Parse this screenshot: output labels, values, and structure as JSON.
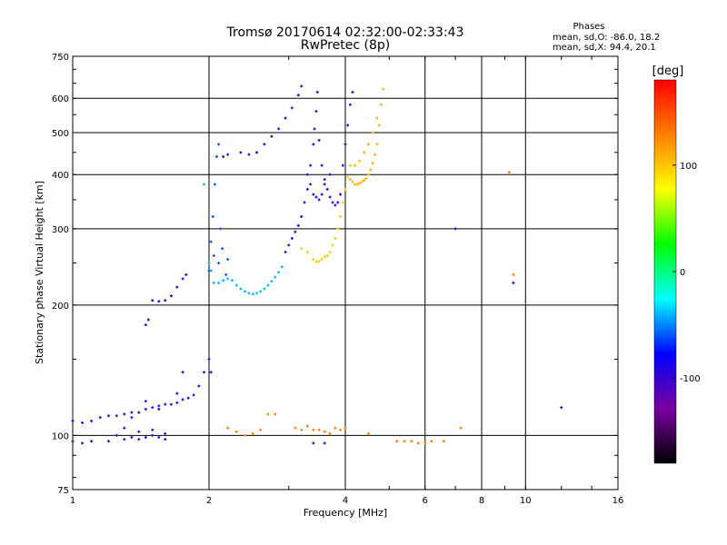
{
  "chart_data": {
    "type": "scatter",
    "title": "Tromsø 20170614 02:32:00-02:33:43",
    "subtitle": "RwPretec (8p)",
    "xlabel": "Frequency [MHz]",
    "ylabel": "Stationary phase Virtual Height [km]",
    "x_scale": "log",
    "y_scale": "log",
    "xlim": [
      1,
      16
    ],
    "ylim": [
      75,
      750
    ],
    "x_ticks": [
      1,
      2,
      4,
      6,
      8,
      10,
      16
    ],
    "y_ticks": [
      75,
      100,
      200,
      300,
      400,
      500,
      600,
      750
    ],
    "grid": true,
    "stats": {
      "heading": "Phases",
      "line_o": "mean, sd,O: -86.0, 18.2",
      "line_x": "mean, sd,X:  94.4, 20.1"
    },
    "colorbar": {
      "label": "[deg]",
      "min": -180,
      "max": 180,
      "ticks": [
        100,
        0,
        -100
      ],
      "stops": [
        "#000000",
        "#7a00a0",
        "#0000ff",
        "#00ffff",
        "#00ff00",
        "#ffff00",
        "#ff8000",
        "#ff0000"
      ]
    },
    "series": [
      {
        "phase": -100,
        "points": [
          [
            1.0,
            108
          ],
          [
            1.05,
            107
          ],
          [
            1.1,
            108
          ],
          [
            1.15,
            110
          ],
          [
            1.2,
            111
          ],
          [
            1.25,
            111
          ],
          [
            1.3,
            112
          ],
          [
            1.35,
            113
          ],
          [
            1.4,
            113
          ],
          [
            1.45,
            115
          ],
          [
            1.5,
            116
          ],
          [
            1.55,
            117
          ],
          [
            1.6,
            118
          ],
          [
            1.65,
            118
          ],
          [
            1.7,
            119
          ],
          [
            1.75,
            121
          ],
          [
            1.8,
            122
          ],
          [
            1.85,
            124
          ],
          [
            1.9,
            130
          ],
          [
            1.95,
            140
          ],
          [
            2.0,
            150
          ],
          [
            2.02,
            140
          ]
        ]
      },
      {
        "phase": -100,
        "points": [
          [
            1.0,
            97
          ],
          [
            1.05,
            96
          ],
          [
            1.1,
            97
          ],
          [
            1.2,
            97
          ],
          [
            1.3,
            98
          ],
          [
            1.35,
            99
          ],
          [
            1.4,
            98
          ],
          [
            1.45,
            99
          ],
          [
            1.5,
            100
          ],
          [
            1.55,
            99
          ],
          [
            1.6,
            98
          ],
          [
            1.25,
            100
          ],
          [
            1.3,
            104
          ],
          [
            1.4,
            102
          ],
          [
            1.5,
            103
          ],
          [
            1.6,
            101
          ],
          [
            1.35,
            110
          ],
          [
            1.45,
            120
          ],
          [
            1.55,
            115
          ],
          [
            1.7,
            125
          ],
          [
            1.75,
            140
          ]
        ]
      },
      {
        "phase": -100,
        "points": [
          [
            1.45,
            180
          ],
          [
            1.47,
            185
          ],
          [
            1.5,
            205
          ],
          [
            1.55,
            204
          ],
          [
            1.6,
            205
          ],
          [
            1.65,
            210
          ],
          [
            1.7,
            220
          ],
          [
            1.75,
            230
          ],
          [
            1.78,
            235
          ]
        ]
      },
      {
        "phase": -40,
        "points": [
          [
            1.95,
            380
          ],
          [
            2.0,
            250
          ],
          [
            2.02,
            240
          ],
          [
            2.05,
            225
          ],
          [
            2.1,
            225
          ],
          [
            2.15,
            228
          ],
          [
            2.2,
            230
          ],
          [
            2.25,
            228
          ],
          [
            2.3,
            222
          ],
          [
            2.35,
            218
          ],
          [
            2.4,
            215
          ],
          [
            2.45,
            213
          ],
          [
            2.5,
            212
          ],
          [
            2.55,
            213
          ],
          [
            2.6,
            215
          ],
          [
            2.65,
            218
          ],
          [
            2.7,
            222
          ],
          [
            2.75,
            227
          ],
          [
            2.8,
            232
          ],
          [
            2.85,
            238
          ],
          [
            2.9,
            245
          ]
        ]
      },
      {
        "phase": -60,
        "points": [
          [
            2.0,
            240
          ],
          [
            2.02,
            280
          ],
          [
            2.04,
            320
          ],
          [
            2.06,
            380
          ],
          [
            2.08,
            440
          ],
          [
            2.1,
            470
          ],
          [
            2.05,
            260
          ],
          [
            2.1,
            250
          ],
          [
            2.12,
            300
          ],
          [
            2.14,
            270
          ],
          [
            2.18,
            235
          ],
          [
            2.2,
            255
          ]
        ]
      },
      {
        "phase": -100,
        "points": [
          [
            2.15,
            440
          ],
          [
            2.2,
            445
          ],
          [
            2.35,
            450
          ],
          [
            2.45,
            445
          ],
          [
            2.55,
            450
          ],
          [
            2.65,
            470
          ],
          [
            2.75,
            490
          ],
          [
            2.85,
            510
          ],
          [
            2.95,
            540
          ],
          [
            3.05,
            570
          ],
          [
            3.15,
            610
          ],
          [
            3.2,
            640
          ]
        ]
      },
      {
        "phase": -100,
        "points": [
          [
            2.95,
            265
          ],
          [
            3.0,
            275
          ],
          [
            3.05,
            285
          ],
          [
            3.1,
            295
          ],
          [
            3.15,
            305
          ],
          [
            3.2,
            320
          ],
          [
            3.25,
            345
          ],
          [
            3.3,
            370
          ],
          [
            3.35,
            420
          ],
          [
            3.4,
            470
          ],
          [
            3.42,
            510
          ],
          [
            3.45,
            560
          ],
          [
            3.47,
            620
          ],
          [
            3.5,
            480
          ],
          [
            3.55,
            420
          ],
          [
            3.6,
            390
          ],
          [
            3.65,
            370
          ],
          [
            3.7,
            355
          ],
          [
            3.75,
            345
          ],
          [
            3.8,
            340
          ],
          [
            3.85,
            345
          ],
          [
            3.9,
            360
          ],
          [
            3.95,
            420
          ],
          [
            4.0,
            470
          ],
          [
            4.05,
            520
          ],
          [
            4.1,
            580
          ],
          [
            4.15,
            620
          ]
        ]
      },
      {
        "phase": -100,
        "points": [
          [
            3.3,
            400
          ],
          [
            3.35,
            380
          ],
          [
            3.4,
            360
          ],
          [
            3.45,
            355
          ],
          [
            3.5,
            350
          ],
          [
            3.55,
            360
          ],
          [
            3.6,
            380
          ],
          [
            3.7,
            400
          ]
        ]
      },
      {
        "phase": 100,
        "points": [
          [
            3.2,
            270
          ],
          [
            3.3,
            265
          ],
          [
            3.4,
            255
          ],
          [
            3.45,
            252
          ],
          [
            3.5,
            252
          ],
          [
            3.55,
            255
          ],
          [
            3.6,
            258
          ],
          [
            3.65,
            260
          ],
          [
            3.7,
            265
          ],
          [
            3.75,
            275
          ],
          [
            3.8,
            285
          ],
          [
            3.85,
            300
          ],
          [
            3.9,
            320
          ],
          [
            3.95,
            345
          ],
          [
            4.0,
            370
          ],
          [
            4.05,
            395
          ],
          [
            4.1,
            420
          ]
        ]
      },
      {
        "phase": 110,
        "points": [
          [
            4.1,
            390
          ],
          [
            4.15,
            385
          ],
          [
            4.2,
            380
          ],
          [
            4.25,
            380
          ],
          [
            4.3,
            382
          ],
          [
            4.35,
            385
          ],
          [
            4.4,
            388
          ],
          [
            4.45,
            392
          ],
          [
            4.5,
            400
          ],
          [
            4.55,
            410
          ],
          [
            4.6,
            425
          ],
          [
            4.65,
            445
          ],
          [
            4.7,
            470
          ],
          [
            4.75,
            520
          ],
          [
            4.8,
            580
          ],
          [
            4.85,
            630
          ],
          [
            4.2,
            420
          ],
          [
            4.3,
            430
          ],
          [
            4.4,
            450
          ],
          [
            4.5,
            470
          ],
          [
            4.6,
            500
          ],
          [
            4.7,
            540
          ]
        ]
      },
      {
        "phase": 130,
        "points": [
          [
            2.2,
            104
          ],
          [
            2.3,
            102
          ],
          [
            2.4,
            100
          ],
          [
            2.5,
            101
          ],
          [
            2.6,
            103
          ],
          [
            2.7,
            112
          ],
          [
            2.8,
            112
          ],
          [
            3.1,
            104
          ],
          [
            3.2,
            103
          ],
          [
            3.3,
            105
          ],
          [
            3.4,
            103
          ],
          [
            3.5,
            103
          ],
          [
            3.6,
            102
          ],
          [
            3.7,
            101
          ],
          [
            3.8,
            104
          ],
          [
            3.9,
            103
          ],
          [
            4.0,
            104
          ],
          [
            4.5,
            101
          ],
          [
            5.2,
            97
          ],
          [
            5.4,
            97
          ],
          [
            5.6,
            97
          ],
          [
            5.8,
            96
          ],
          [
            6.0,
            96
          ],
          [
            6.2,
            97
          ],
          [
            6.6,
            97
          ],
          [
            7.2,
            104
          ],
          [
            9.2,
            405
          ],
          [
            9.4,
            235
          ]
        ]
      },
      {
        "phase": -100,
        "points": [
          [
            9.4,
            225
          ],
          [
            12.0,
            116
          ],
          [
            7.0,
            300
          ],
          [
            3.4,
            96
          ],
          [
            3.6,
            96
          ]
        ]
      }
    ]
  }
}
